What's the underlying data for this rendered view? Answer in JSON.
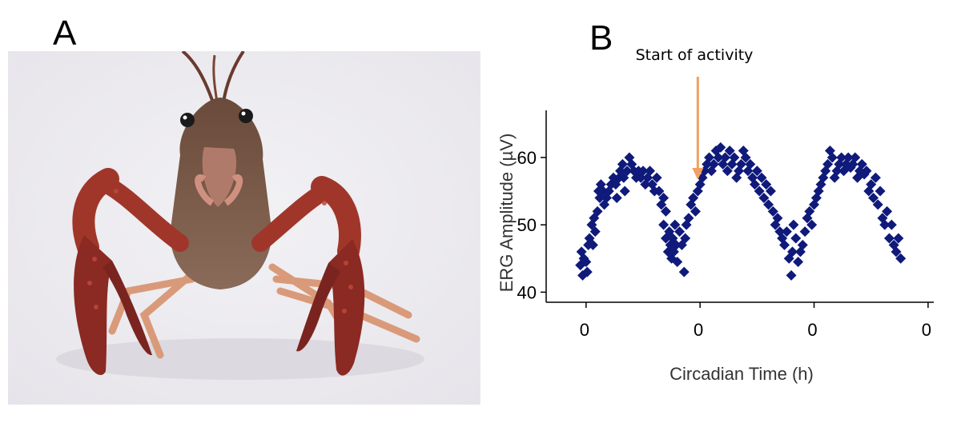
{
  "panels": {
    "a": {
      "label": "A"
    },
    "b": {
      "label": "B"
    }
  },
  "chart_data": {
    "type": "scatter",
    "title": "",
    "xlabel": "Circadian Time (h)",
    "ylabel": "ERG Amplitude (µV)",
    "x_tick_labels": [
      "0",
      "0",
      "0",
      "0"
    ],
    "x_tick_values": [
      0,
      1,
      2,
      3
    ],
    "xlim": [
      -0.35,
      3.05
    ],
    "y_ticks": [
      40,
      50,
      60
    ],
    "ylim": [
      38.5,
      67
    ],
    "grid": false,
    "legend": "none",
    "marker": "diamond",
    "marker_color": "#0f1a7a",
    "annotation": {
      "text": "Start of activity",
      "x": 0.98,
      "arrow_color": "#f0a060"
    },
    "series": [
      {
        "points": [
          [
            -0.05,
            44
          ],
          [
            -0.04,
            46
          ],
          [
            -0.03,
            42.5
          ],
          [
            -0.02,
            45
          ],
          [
            0.0,
            44.5
          ],
          [
            0.01,
            43
          ],
          [
            0.02,
            47
          ],
          [
            0.03,
            48
          ],
          [
            0.05,
            50
          ],
          [
            0.06,
            47
          ],
          [
            0.07,
            51
          ],
          [
            0.08,
            49
          ],
          [
            0.1,
            52
          ],
          [
            0.11,
            55
          ],
          [
            0.12,
            54
          ],
          [
            0.13,
            56
          ],
          [
            0.15,
            55
          ],
          [
            0.16,
            53
          ],
          [
            0.18,
            54
          ],
          [
            0.2,
            55
          ],
          [
            0.22,
            56
          ],
          [
            0.24,
            57
          ],
          [
            0.26,
            56
          ],
          [
            0.27,
            54
          ],
          [
            0.29,
            57
          ],
          [
            0.3,
            58
          ],
          [
            0.32,
            59
          ],
          [
            0.33,
            57
          ],
          [
            0.34,
            55
          ],
          [
            0.36,
            58
          ],
          [
            0.38,
            60
          ],
          [
            0.4,
            59
          ],
          [
            0.42,
            58
          ],
          [
            0.44,
            57
          ],
          [
            0.46,
            58
          ],
          [
            0.48,
            57
          ],
          [
            0.5,
            58
          ],
          [
            0.52,
            56
          ],
          [
            0.54,
            57
          ],
          [
            0.56,
            58
          ],
          [
            0.58,
            56
          ],
          [
            0.6,
            55
          ],
          [
            0.62,
            57
          ],
          [
            0.64,
            55
          ],
          [
            0.66,
            53
          ],
          [
            0.68,
            54
          ],
          [
            0.7,
            52
          ],
          [
            0.68,
            50
          ],
          [
            0.7,
            48
          ],
          [
            0.72,
            46
          ],
          [
            0.73,
            49
          ],
          [
            0.74,
            47
          ],
          [
            0.75,
            45
          ],
          [
            0.76,
            48
          ],
          [
            0.77,
            46
          ],
          [
            0.78,
            50
          ],
          [
            0.79,
            47
          ],
          [
            0.8,
            44.5
          ],
          [
            0.82,
            49
          ],
          [
            0.84,
            47
          ],
          [
            0.86,
            43
          ],
          [
            0.87,
            48
          ],
          [
            0.88,
            50
          ],
          [
            0.9,
            51
          ],
          [
            0.92,
            53
          ],
          [
            0.94,
            54
          ],
          [
            0.96,
            52
          ],
          [
            0.98,
            55
          ],
          [
            1.0,
            56
          ],
          [
            1.02,
            57
          ],
          [
            1.04,
            58
          ],
          [
            1.06,
            59
          ],
          [
            1.08,
            60
          ],
          [
            1.1,
            58
          ],
          [
            1.12,
            59
          ],
          [
            1.14,
            61
          ],
          [
            1.16,
            60
          ],
          [
            1.18,
            61.5
          ],
          [
            1.2,
            59
          ],
          [
            1.22,
            60
          ],
          [
            1.24,
            58
          ],
          [
            1.26,
            61
          ],
          [
            1.28,
            59
          ],
          [
            1.3,
            60
          ],
          [
            1.32,
            57
          ],
          [
            1.34,
            58
          ],
          [
            1.36,
            59
          ],
          [
            1.38,
            61
          ],
          [
            1.4,
            60
          ],
          [
            1.42,
            58
          ],
          [
            1.44,
            59
          ],
          [
            1.46,
            57
          ],
          [
            1.48,
            56
          ],
          [
            1.5,
            58
          ],
          [
            1.52,
            55
          ],
          [
            1.54,
            57
          ],
          [
            1.56,
            54
          ],
          [
            1.58,
            56
          ],
          [
            1.6,
            53
          ],
          [
            1.62,
            55
          ],
          [
            1.64,
            52
          ],
          [
            1.66,
            50
          ],
          [
            1.68,
            51
          ],
          [
            1.7,
            49
          ],
          [
            1.72,
            48
          ],
          [
            1.74,
            47
          ],
          [
            1.76,
            49
          ],
          [
            1.78,
            45
          ],
          [
            1.8,
            42.5
          ],
          [
            1.81,
            46
          ],
          [
            1.82,
            50
          ],
          [
            1.84,
            48
          ],
          [
            1.86,
            44.5
          ],
          [
            1.88,
            46
          ],
          [
            1.9,
            47
          ],
          [
            1.92,
            49
          ],
          [
            1.94,
            51
          ],
          [
            1.96,
            52
          ],
          [
            1.98,
            50
          ],
          [
            2.0,
            53
          ],
          [
            2.02,
            54
          ],
          [
            2.04,
            55
          ],
          [
            2.06,
            56
          ],
          [
            2.08,
            57
          ],
          [
            2.1,
            58
          ],
          [
            2.12,
            59
          ],
          [
            2.14,
            61
          ],
          [
            2.16,
            60
          ],
          [
            2.18,
            57
          ],
          [
            2.2,
            58
          ],
          [
            2.22,
            59
          ],
          [
            2.24,
            60
          ],
          [
            2.26,
            58
          ],
          [
            2.28,
            59
          ],
          [
            2.3,
            60
          ],
          [
            2.32,
            58.5
          ],
          [
            2.34,
            59
          ],
          [
            2.36,
            60
          ],
          [
            2.38,
            57
          ],
          [
            2.4,
            58
          ],
          [
            2.42,
            59
          ],
          [
            2.44,
            57.5
          ],
          [
            2.46,
            58
          ],
          [
            2.48,
            55
          ],
          [
            2.5,
            56
          ],
          [
            2.52,
            54
          ],
          [
            2.54,
            57
          ],
          [
            2.56,
            53
          ],
          [
            2.58,
            55
          ],
          [
            2.6,
            51
          ],
          [
            2.62,
            50
          ],
          [
            2.64,
            52
          ],
          [
            2.66,
            48
          ],
          [
            2.68,
            50
          ],
          [
            2.7,
            47
          ],
          [
            2.72,
            46
          ],
          [
            2.74,
            48
          ],
          [
            2.76,
            45
          ]
        ]
      }
    ]
  }
}
